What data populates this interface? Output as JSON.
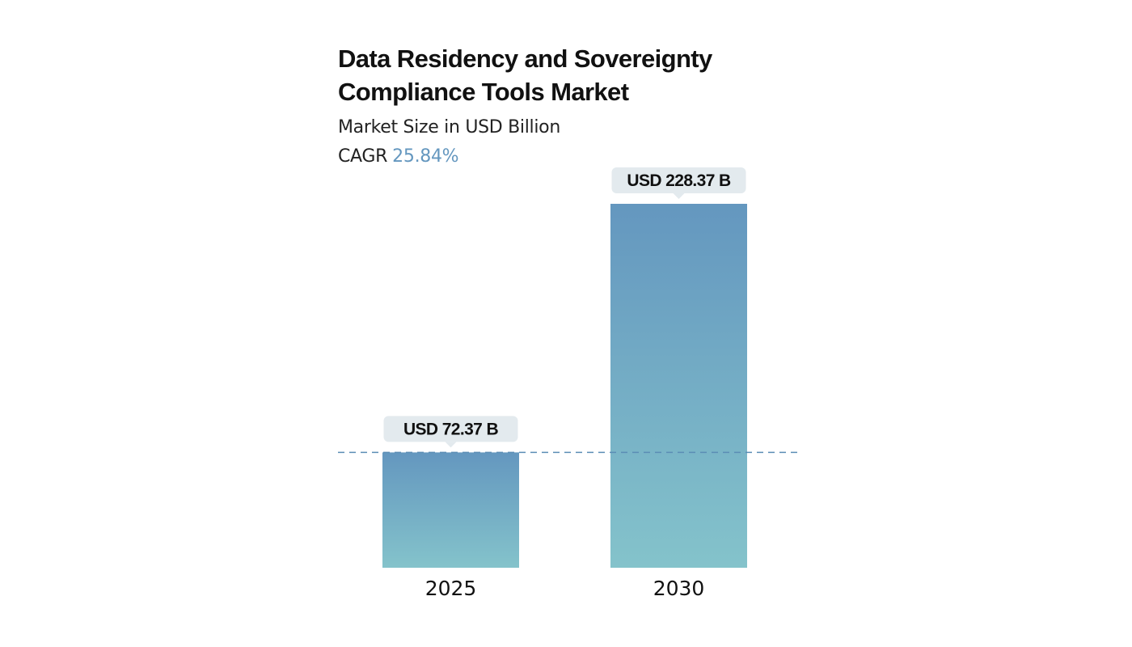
{
  "chart_data": {
    "type": "bar",
    "title": "Data Residency and Sovereignty\nCompliance Tools Market",
    "subtitle": "Market Size in USD Billion",
    "cagr_label": "CAGR",
    "cagr_value": "25.84%",
    "categories": [
      "2025",
      "2030"
    ],
    "values": [
      72.37,
      228.37
    ],
    "value_labels": [
      "USD 72.37 B",
      "USD 228.37 B"
    ],
    "reference_line_value": 72.37,
    "ylim": [
      0,
      228.37
    ],
    "xlabel": "",
    "ylabel": "",
    "grid": false,
    "legend": "none"
  },
  "colors": {
    "bar_top": "#6497bf",
    "bar_bottom": "#84c3cb",
    "label_bg": "#e3eaee",
    "reference_line": "#5b8db5",
    "cagr_accent": "#6497bf",
    "text": "#111111"
  }
}
